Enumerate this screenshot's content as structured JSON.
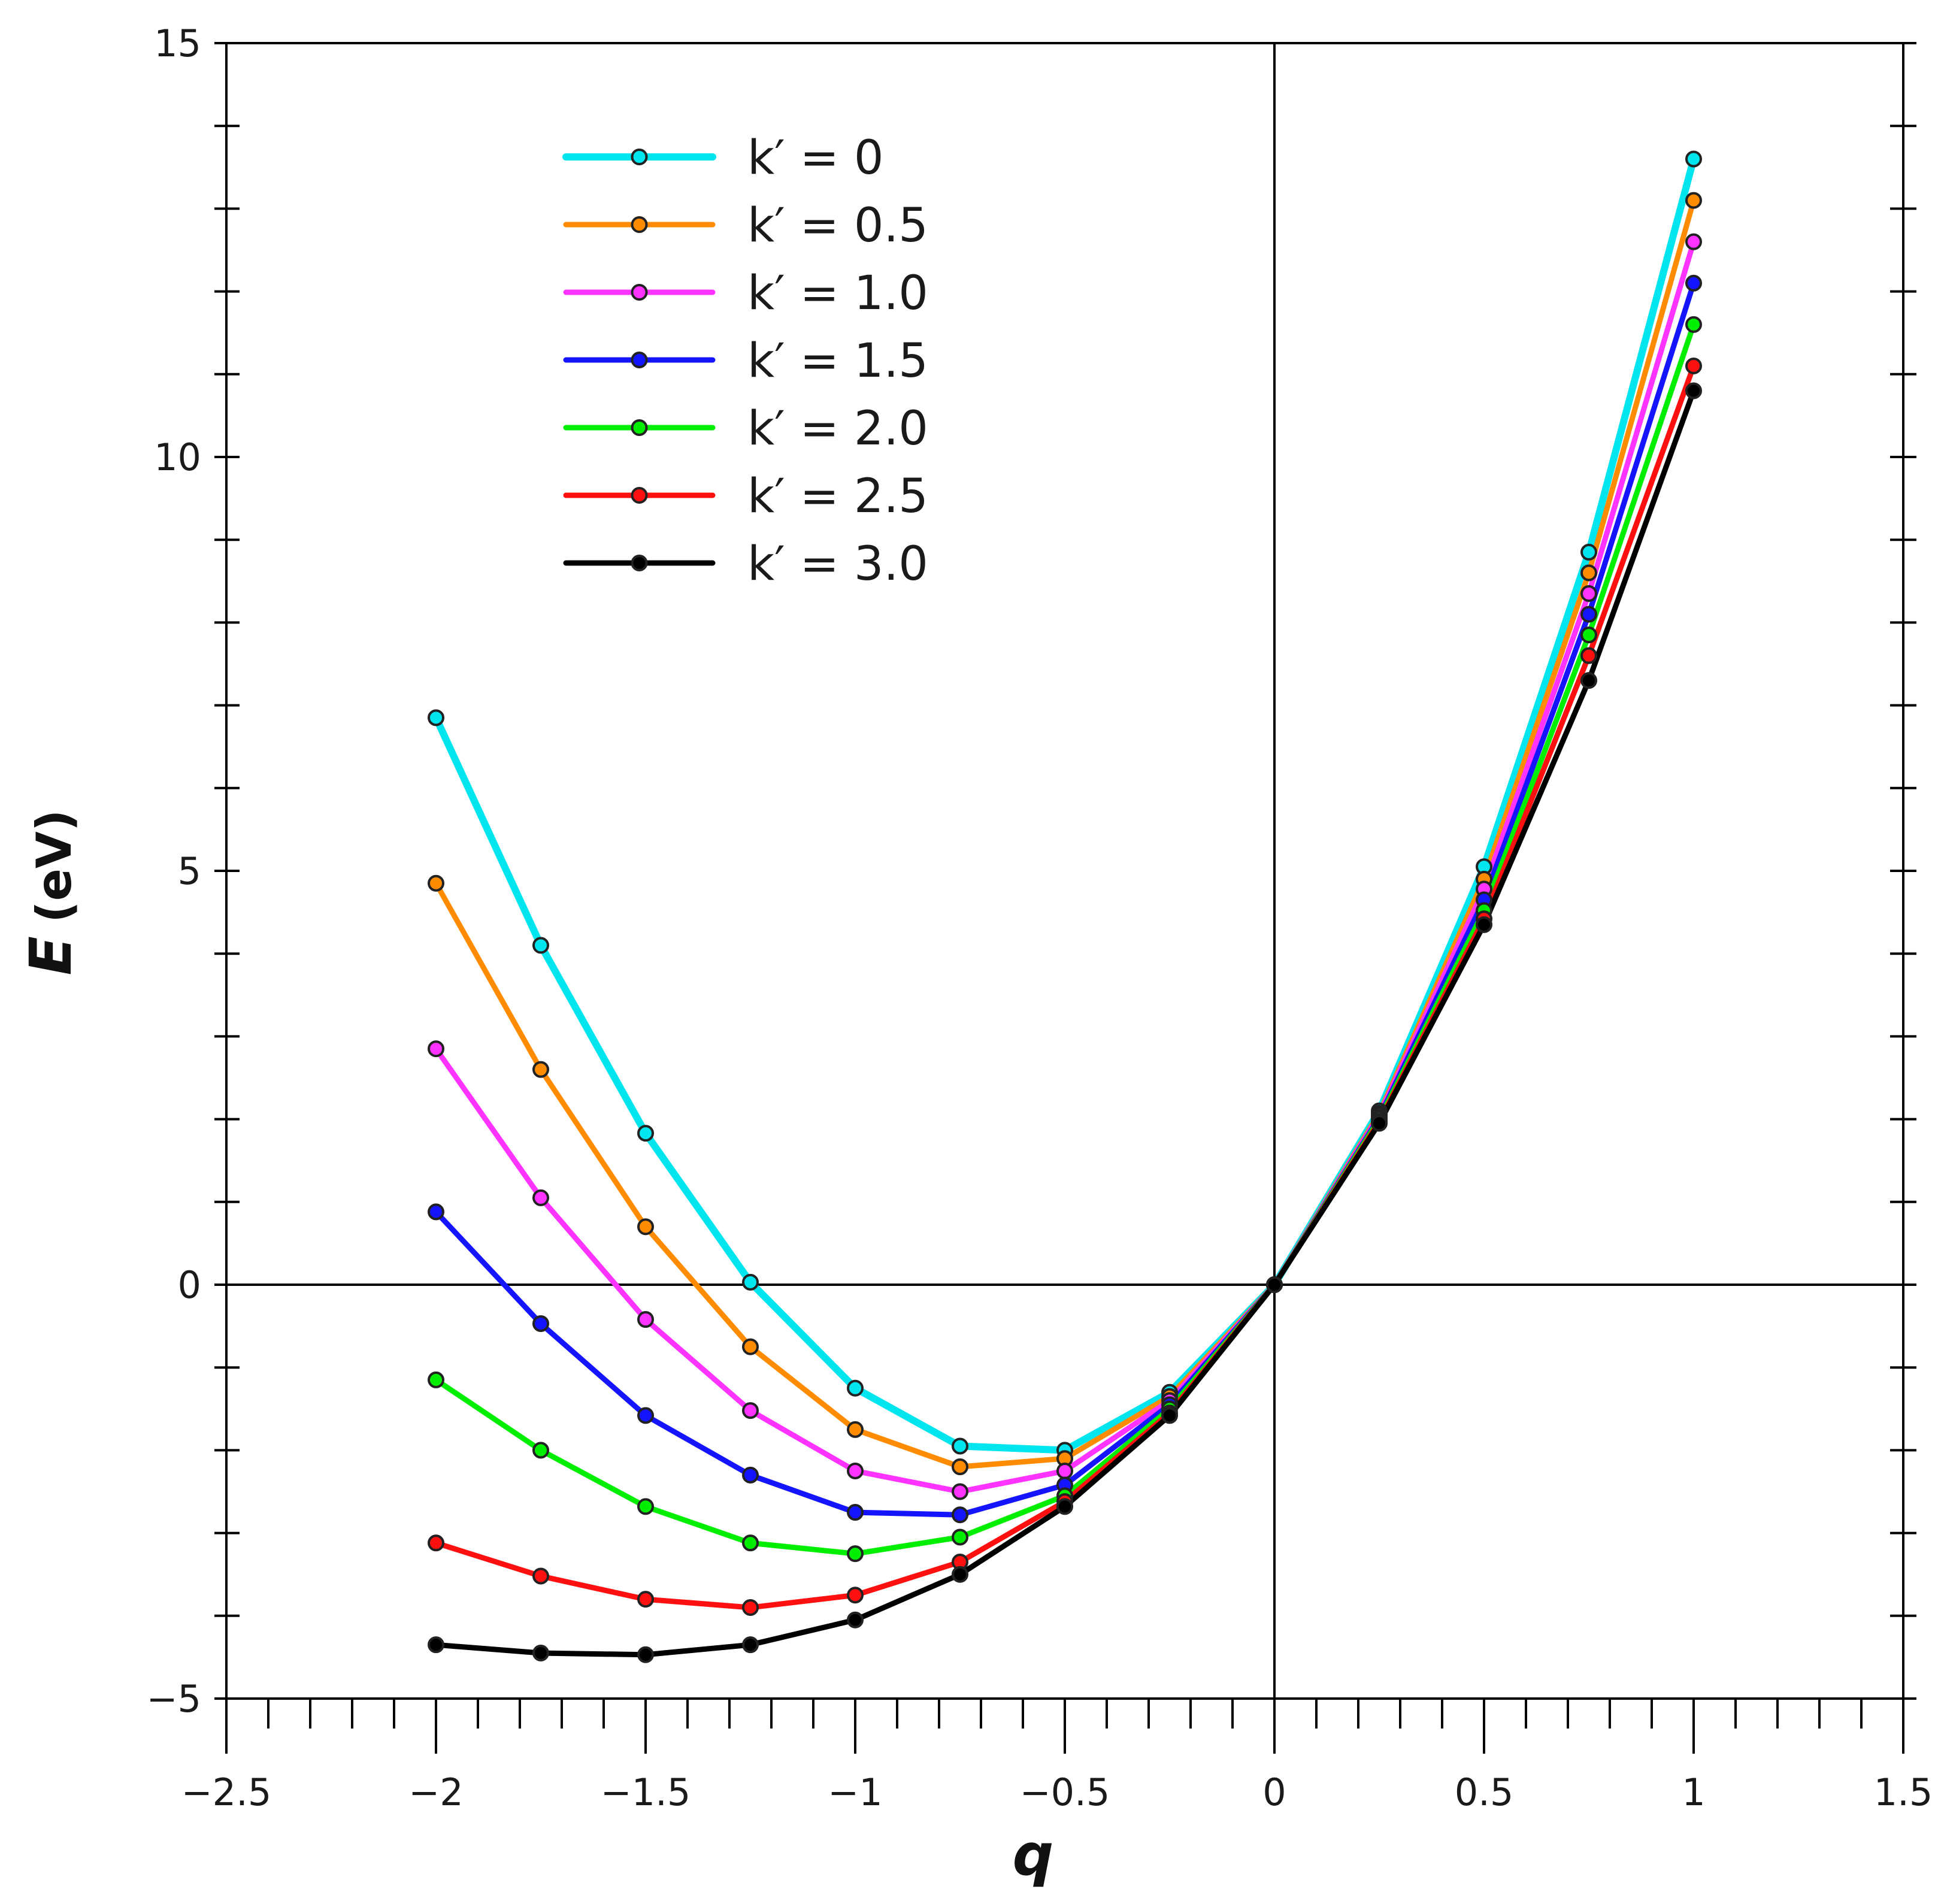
{
  "chart_data": {
    "type": "line",
    "title": "",
    "xlabel": "q",
    "ylabel": "E",
    "ylabel_unit": "(eV)",
    "xlim": [
      -2.5,
      1.5
    ],
    "ylim": [
      -5,
      15
    ],
    "x_ticks": [
      -2.5,
      -2,
      -1.5,
      -1,
      -0.5,
      0,
      0.5,
      1,
      1.5
    ],
    "x_tick_labels": [
      "−2.5",
      "−2",
      "−1.5",
      "−1",
      "−0.5",
      "0",
      "0.5",
      "1",
      "1.5"
    ],
    "y_ticks": [
      -5,
      0,
      5,
      10,
      15
    ],
    "y_tick_labels": [
      "−5",
      "0",
      "5",
      "10",
      "15"
    ],
    "legend_placement": "top-left",
    "legend_symbol": "k′ =",
    "x": [
      -2,
      -1.75,
      -1.5,
      -1.25,
      -1,
      -0.75,
      -0.5,
      -0.25,
      0,
      0.25,
      0.5,
      0.75,
      1
    ],
    "series": [
      {
        "name": "0",
        "label": "k′ = 0",
        "color": "#00e5ee",
        "values": [
          6.85,
          4.1,
          1.83,
          0.03,
          -1.25,
          -1.95,
          -2.0,
          -1.3,
          0,
          2.1,
          5.05,
          8.85,
          13.6
        ]
      },
      {
        "name": "0.5",
        "label": "k′ = 0.5",
        "color": "#ff8c00",
        "values": [
          4.85,
          2.6,
          0.7,
          -0.75,
          -1.75,
          -2.2,
          -2.1,
          -1.35,
          0,
          2.07,
          4.9,
          8.6,
          13.1
        ]
      },
      {
        "name": "1.0",
        "label": "k′ = 1.0",
        "color": "#ff33ff",
        "values": [
          2.85,
          1.05,
          -0.42,
          -1.52,
          -2.25,
          -2.5,
          -2.25,
          -1.4,
          0,
          2.05,
          4.78,
          8.35,
          12.6
        ]
      },
      {
        "name": "1.5",
        "label": "k′ = 1.5",
        "color": "#1414ff",
        "values": [
          0.88,
          -0.47,
          -1.58,
          -2.3,
          -2.75,
          -2.78,
          -2.42,
          -1.45,
          0,
          2.02,
          4.65,
          8.1,
          12.1
        ]
      },
      {
        "name": "2.0",
        "label": "k′ = 2.0",
        "color": "#00ee00",
        "values": [
          -1.15,
          -2.0,
          -2.68,
          -3.12,
          -3.25,
          -3.05,
          -2.55,
          -1.5,
          0,
          2.0,
          4.52,
          7.85,
          11.6
        ]
      },
      {
        "name": "2.5",
        "label": "k′ = 2.5",
        "color": "#ff1010",
        "values": [
          -3.12,
          -3.52,
          -3.8,
          -3.9,
          -3.75,
          -3.35,
          -2.62,
          -1.55,
          0,
          1.97,
          4.42,
          7.6,
          11.1
        ]
      },
      {
        "name": "3.0",
        "label": "k′ = 3.0",
        "color": "#000000",
        "values": [
          -4.35,
          -4.45,
          -4.47,
          -4.35,
          -4.05,
          -3.5,
          -2.68,
          -1.58,
          0,
          1.95,
          4.35,
          7.3,
          10.8
        ]
      }
    ]
  }
}
